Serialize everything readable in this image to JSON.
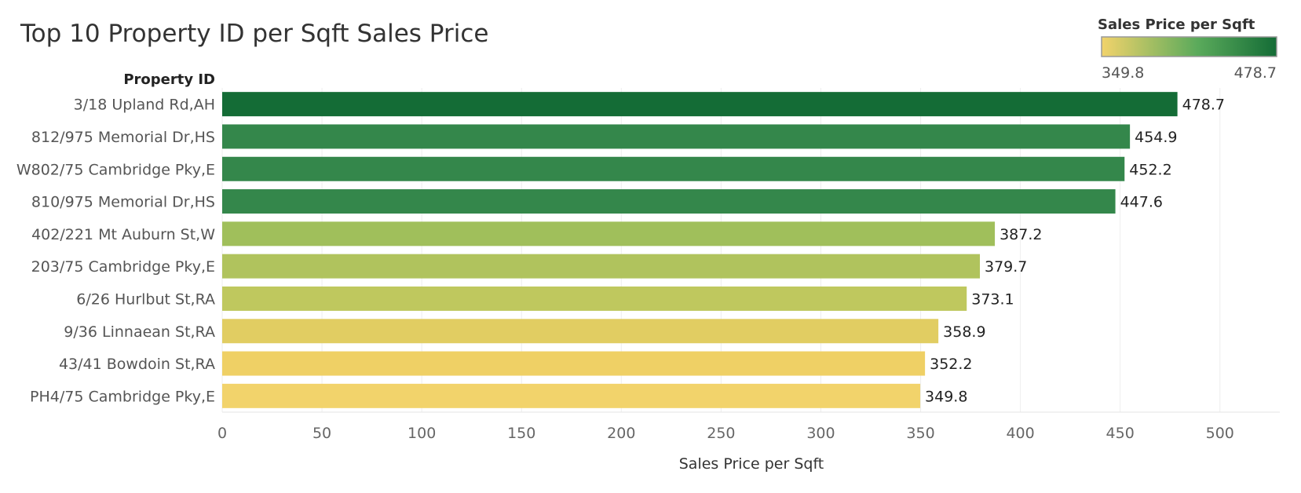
{
  "chart_data": {
    "type": "bar",
    "orientation": "horizontal",
    "title": "Top 10 Property ID per Sqft Sales Price",
    "ylabel": "Property ID",
    "xlabel": "Sales Price per Sqft",
    "xlim": [
      0,
      530
    ],
    "xticks": [
      0,
      50,
      100,
      150,
      200,
      250,
      300,
      350,
      400,
      450,
      500
    ],
    "grid": true,
    "categories": [
      "3/18 Upland Rd,AH",
      "812/975 Memorial Dr,HS",
      "W802/75 Cambridge Pky,E",
      "810/975 Memorial Dr,HS",
      "402/221 Mt Auburn St,W",
      "203/75 Cambridge Pky,E",
      "6/26 Hurlbut St,RA",
      "9/36 Linnaean St,RA",
      "43/41 Bowdoin St,RA",
      "PH4/75 Cambridge Pky,E"
    ],
    "values": [
      478.7,
      454.9,
      452.2,
      447.6,
      387.2,
      379.7,
      373.1,
      358.9,
      352.2,
      349.8
    ],
    "data_labels": [
      "478.7",
      "454.9",
      "452.2",
      "447.6",
      "387.2",
      "379.7",
      "373.1",
      "358.9",
      "352.2",
      "349.8"
    ],
    "color_legend": {
      "title": "Sales Price per Sqft",
      "min_label": "349.8",
      "max_label": "478.7",
      "min": 349.8,
      "max": 478.7,
      "placement": "top-right"
    },
    "colors": {
      "low": "#f2d36b",
      "mid": "#5aaa5b",
      "high": "#146c36",
      "bar_palette": {
        "478.7": "#146c36",
        "454.9": "#34874b",
        "452.2": "#34874b",
        "447.6": "#34874b",
        "387.2": "#a0bf5b",
        "379.7": "#b0c35d",
        "373.1": "#bfc85e",
        "358.9": "#e1cd62",
        "352.2": "#efd065",
        "349.8": "#f2d36b"
      }
    }
  }
}
